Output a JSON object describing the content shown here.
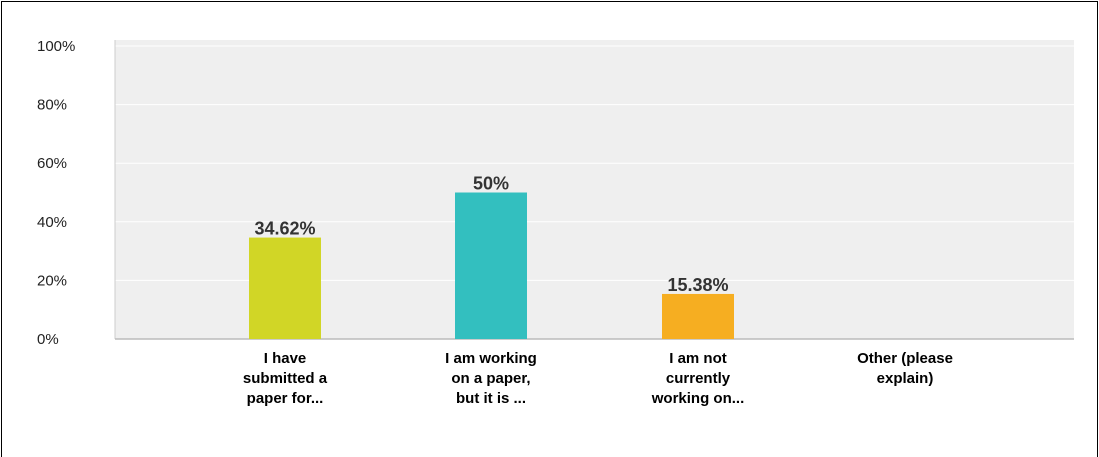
{
  "chart_data": {
    "type": "bar",
    "categories": [
      "I have submitted a paper for...",
      "I am working on a paper, but it is ...",
      "I am not currently working on...",
      "Other (please explain)"
    ],
    "category_lines": [
      [
        "I have",
        "submitted a",
        "paper for..."
      ],
      [
        "I am working",
        "on a paper,",
        "but it is ..."
      ],
      [
        "I am not",
        "currently",
        "working on..."
      ],
      [
        "Other (please",
        "explain)"
      ]
    ],
    "values": [
      34.62,
      50,
      15.38,
      0
    ],
    "data_labels": [
      "34.62%",
      "50%",
      "15.38%",
      ""
    ],
    "colors": [
      "#d1d626",
      "#33bfbf",
      "#f6ae21",
      "#999999"
    ],
    "yticks": [
      "0%",
      "20%",
      "40%",
      "60%",
      "80%",
      "100%"
    ],
    "ylim": [
      0,
      100
    ],
    "grid": true,
    "plot_background": "#efefef"
  }
}
